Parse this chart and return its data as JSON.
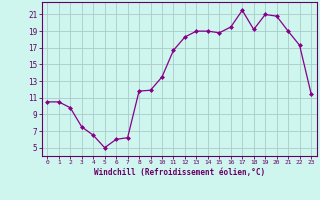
{
  "x": [
    0,
    1,
    2,
    3,
    4,
    5,
    6,
    7,
    8,
    9,
    10,
    11,
    12,
    13,
    14,
    15,
    16,
    17,
    18,
    19,
    20,
    21,
    22,
    23
  ],
  "y": [
    10.5,
    10.5,
    9.8,
    7.5,
    6.5,
    5.0,
    6.0,
    6.2,
    11.8,
    11.9,
    13.5,
    16.7,
    18.3,
    19.0,
    19.0,
    18.8,
    19.5,
    21.5,
    19.2,
    21.0,
    20.8,
    19.0,
    17.3,
    11.5
  ],
  "line_color": "#880088",
  "marker": "D",
  "marker_size": 2.0,
  "bg_color": "#cef5ee",
  "grid_color": "#aaccc8",
  "xlabel": "Windchill (Refroidissement éolien,°C)",
  "xlabel_color": "#660066",
  "ylabel_ticks": [
    5,
    7,
    9,
    11,
    13,
    15,
    17,
    19,
    21
  ],
  "xtick_labels": [
    "0",
    "1",
    "2",
    "3",
    "4",
    "5",
    "6",
    "7",
    "8",
    "9",
    "10",
    "11",
    "12",
    "13",
    "14",
    "15",
    "16",
    "17",
    "18",
    "19",
    "20",
    "21",
    "22",
    "23"
  ],
  "xlim": [
    -0.5,
    23.5
  ],
  "ylim": [
    4.0,
    22.5
  ],
  "tick_label_color": "#660066",
  "spine_color": "#660066"
}
